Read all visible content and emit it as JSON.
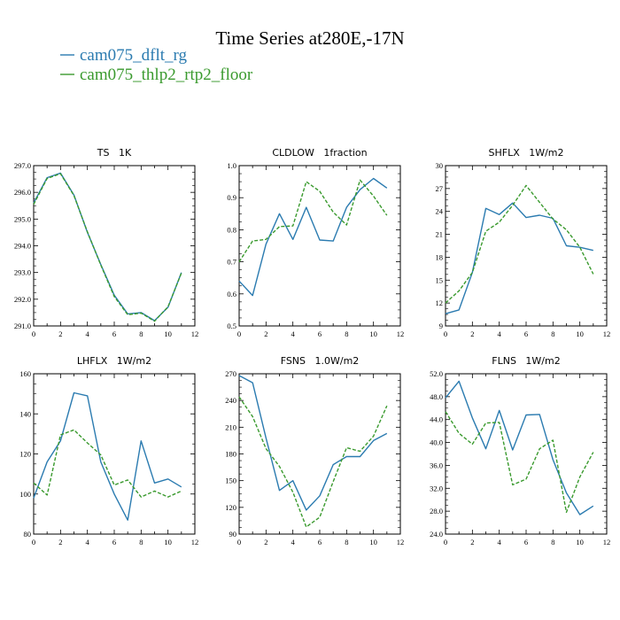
{
  "page": {
    "title": "Time Series at280E,-17N",
    "legend": [
      {
        "name": "cam075_dflt_rg",
        "color": "#2b7bb0",
        "dash": "solid"
      },
      {
        "name": "cam075_thlp2_rtp2_floor",
        "color": "#3a9a2e",
        "dash": "dashed"
      }
    ]
  },
  "chart_data": [
    {
      "type": "line",
      "title": "TS   1K",
      "x": [
        0,
        1,
        2,
        3,
        4,
        5,
        6,
        7,
        8,
        9,
        10,
        11
      ],
      "xlim": [
        0,
        12
      ],
      "xticks": [
        "0",
        "2",
        "4",
        "6",
        "8",
        "10",
        "12"
      ],
      "ylim": [
        291.0,
        297.0
      ],
      "yticks": [
        "291.0",
        "292.0",
        "293.0",
        "294.0",
        "295.0",
        "296.0",
        "297.0"
      ],
      "series": [
        {
          "values": [
            295.6,
            296.55,
            296.72,
            295.9,
            294.5,
            293.3,
            292.15,
            291.45,
            291.5,
            291.2,
            291.7,
            293.0
          ]
        },
        {
          "values": [
            295.55,
            296.52,
            296.7,
            295.88,
            294.52,
            293.28,
            292.1,
            291.42,
            291.48,
            291.18,
            291.72,
            292.98
          ]
        }
      ]
    },
    {
      "type": "line",
      "title": "CLDLOW   1fraction",
      "x": [
        0,
        1,
        2,
        3,
        4,
        5,
        6,
        7,
        8,
        9,
        10,
        11
      ],
      "xlim": [
        0,
        12
      ],
      "xticks": [
        "0",
        "2",
        "4",
        "6",
        "8",
        "10",
        "12"
      ],
      "ylim": [
        0.5,
        1.0
      ],
      "yticks": [
        "0.5",
        "0.6",
        "0.7",
        "0.8",
        "0.9",
        "1.0"
      ],
      "series": [
        {
          "values": [
            0.64,
            0.595,
            0.755,
            0.85,
            0.77,
            0.87,
            0.768,
            0.765,
            0.87,
            0.925,
            0.96,
            0.93
          ]
        },
        {
          "values": [
            0.7,
            0.765,
            0.77,
            0.81,
            0.812,
            0.95,
            0.92,
            0.855,
            0.815,
            0.955,
            0.905,
            0.845
          ]
        }
      ]
    },
    {
      "type": "line",
      "title": "SHFLX   1W/m2",
      "x": [
        0,
        1,
        2,
        3,
        4,
        5,
        6,
        7,
        8,
        9,
        10,
        11
      ],
      "xlim": [
        0,
        12
      ],
      "xticks": [
        "0",
        "2",
        "4",
        "6",
        "8",
        "10",
        "12"
      ],
      "ylim": [
        9,
        30
      ],
      "yticks": [
        "9",
        "12",
        "15",
        "18",
        "21",
        "24",
        "27",
        "30"
      ],
      "series": [
        {
          "values": [
            10.6,
            11.1,
            16.0,
            24.4,
            23.6,
            25.1,
            23.2,
            23.5,
            23.1,
            19.5,
            19.3,
            18.9
          ]
        },
        {
          "values": [
            12.0,
            13.6,
            16.0,
            21.4,
            22.6,
            24.8,
            27.4,
            25.2,
            23.0,
            21.6,
            19.3,
            15.8
          ]
        }
      ]
    },
    {
      "type": "line",
      "title": "LHFLX   1W/m2",
      "x": [
        0,
        1,
        2,
        3,
        4,
        5,
        6,
        7,
        8,
        9,
        10,
        11
      ],
      "xlim": [
        0,
        12
      ],
      "xticks": [
        "0",
        "2",
        "4",
        "6",
        "8",
        "10",
        "12"
      ],
      "ylim": [
        80,
        160
      ],
      "yticks": [
        "80",
        "100",
        "120",
        "140",
        "160"
      ],
      "series": [
        {
          "values": [
            98.0,
            116.0,
            126.5,
            150.5,
            149.0,
            116.0,
            100.0,
            87.0,
            126.5,
            105.5,
            107.5,
            103.5
          ]
        },
        {
          "values": [
            105.5,
            99.5,
            129.5,
            132.0,
            125.5,
            119.5,
            104.5,
            107.0,
            98.5,
            101.5,
            98.5,
            101.5
          ]
        }
      ]
    },
    {
      "type": "line",
      "title": "FSNS   1.0W/m2",
      "x": [
        0,
        1,
        2,
        3,
        4,
        5,
        6,
        7,
        8,
        9,
        10,
        11
      ],
      "xlim": [
        0,
        12
      ],
      "xticks": [
        "0",
        "2",
        "4",
        "6",
        "8",
        "10",
        "12"
      ],
      "ylim": [
        90,
        270
      ],
      "yticks": [
        "90",
        "120",
        "150",
        "180",
        "210",
        "240",
        "270"
      ],
      "series": [
        {
          "values": [
            268.0,
            260.0,
            198.0,
            139.0,
            150.0,
            117.0,
            133.0,
            168.0,
            177.0,
            177.0,
            195.0,
            203.0
          ]
        },
        {
          "values": [
            244.0,
            222.0,
            186.0,
            166.0,
            137.0,
            98.0,
            109.0,
            149.0,
            187.0,
            183.0,
            200.0,
            234.0
          ]
        }
      ]
    },
    {
      "type": "line",
      "title": "FLNS   1W/m2",
      "x": [
        0,
        1,
        2,
        3,
        4,
        5,
        6,
        7,
        8,
        9,
        10,
        11
      ],
      "xlim": [
        0,
        12
      ],
      "xticks": [
        "0",
        "2",
        "4",
        "6",
        "8",
        "10",
        "12"
      ],
      "ylim": [
        24.0,
        52.0
      ],
      "yticks": [
        "24.0",
        "28.0",
        "32.0",
        "36.0",
        "40.0",
        "44.0",
        "48.0",
        "52.0"
      ],
      "series": [
        {
          "values": [
            47.8,
            50.7,
            44.3,
            38.9,
            45.6,
            38.7,
            44.8,
            44.9,
            37.0,
            31.2,
            27.4,
            28.9
          ]
        },
        {
          "values": [
            45.4,
            41.6,
            39.7,
            43.4,
            43.5,
            32.6,
            33.6,
            38.9,
            40.4,
            27.8,
            34.0,
            38.3
          ]
        }
      ]
    }
  ]
}
